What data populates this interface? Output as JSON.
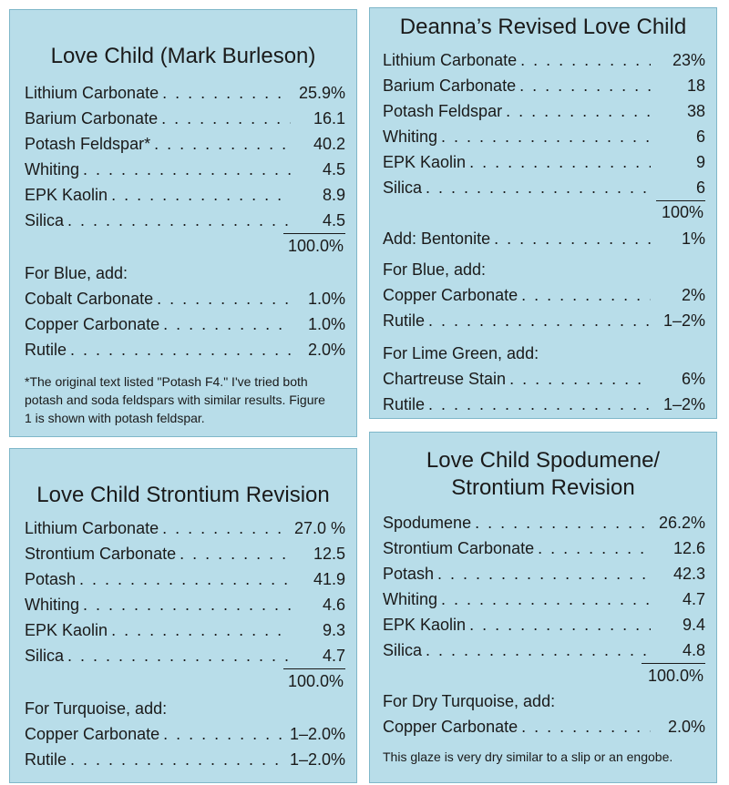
{
  "panel1": {
    "title": "Love Child (Mark Burleson)",
    "ingredients": [
      {
        "name": "Lithium Carbonate",
        "value": "25.9%"
      },
      {
        "name": "Barium Carbonate",
        "value": "16.1"
      },
      {
        "name": "Potash Feldspar*",
        "value": "40.2"
      },
      {
        "name": "Whiting",
        "value": "4.5"
      },
      {
        "name": "EPK Kaolin",
        "value": "8.9"
      },
      {
        "name": "Silica",
        "value": "4.5"
      }
    ],
    "total": "100.0%",
    "addition_heading": "For Blue, add:",
    "additions": [
      {
        "name": "Cobalt Carbonate",
        "value": "1.0%"
      },
      {
        "name": "Copper Carbonate",
        "value": "1.0%"
      },
      {
        "name": "Rutile",
        "value": "2.0%"
      }
    ],
    "footnote_lines": [
      "*The original text listed \"Potash F4.\" I've tried both",
      "potash and soda feldspars with similar results. Figure",
      "1 is shown with potash feldspar."
    ]
  },
  "panel2": {
    "title": "Deanna’s Revised Love Child",
    "ingredients": [
      {
        "name": "Lithium Carbonate",
        "value": "23%"
      },
      {
        "name": "Barium Carbonate",
        "value": "18"
      },
      {
        "name": "Potash Feldspar",
        "value": "38"
      },
      {
        "name": "Whiting",
        "value": "6"
      },
      {
        "name": "EPK Kaolin",
        "value": "9"
      },
      {
        "name": "Silica",
        "value": "6"
      }
    ],
    "total": "100%",
    "extra": {
      "name": "Add: Bentonite",
      "value": "1%"
    },
    "groups": [
      {
        "heading": "For Blue, add:",
        "items": [
          {
            "name": "Copper Carbonate",
            "value": "2%"
          },
          {
            "name": "Rutile",
            "value": "1–2%"
          }
        ]
      },
      {
        "heading": "For Lime Green, add:",
        "items": [
          {
            "name": "Chartreuse Stain",
            "value": "6%"
          },
          {
            "name": "Rutile",
            "value": "1–2%"
          }
        ]
      }
    ]
  },
  "panel3": {
    "title": "Love Child Strontium Revision",
    "ingredients": [
      {
        "name": "Lithium Carbonate",
        "value": "27.0 %"
      },
      {
        "name": "Strontium Carbonate",
        "value": "12.5"
      },
      {
        "name": "Potash",
        "value": "41.9"
      },
      {
        "name": "Whiting",
        "value": "4.6"
      },
      {
        "name": "EPK Kaolin",
        "value": "9.3"
      },
      {
        "name": "Silica",
        "value": "4.7"
      }
    ],
    "total": "100.0%",
    "addition_heading": "For Turquoise, add:",
    "additions": [
      {
        "name": "Copper Carbonate",
        "value": "1–2.0%"
      },
      {
        "name": "Rutile",
        "value": "1–2.0%"
      }
    ]
  },
  "panel4": {
    "title_lines": [
      "Love Child Spodumene/",
      "Strontium Revision"
    ],
    "ingredients": [
      {
        "name": "Spodumene",
        "value": "26.2%"
      },
      {
        "name": "Strontium Carbonate",
        "value": "12.6"
      },
      {
        "name": "Potash",
        "value": "42.3"
      },
      {
        "name": "Whiting",
        "value": "4.7"
      },
      {
        "name": "EPK Kaolin",
        "value": "9.4"
      },
      {
        "name": "Silica",
        "value": "4.8"
      }
    ],
    "total": "100.0%",
    "addition_heading": "For Dry Turquoise, add:",
    "additions": [
      {
        "name": "Copper Carbonate",
        "value": "2.0%"
      }
    ],
    "note": "This glaze is very dry similar to a slip or an engobe."
  }
}
